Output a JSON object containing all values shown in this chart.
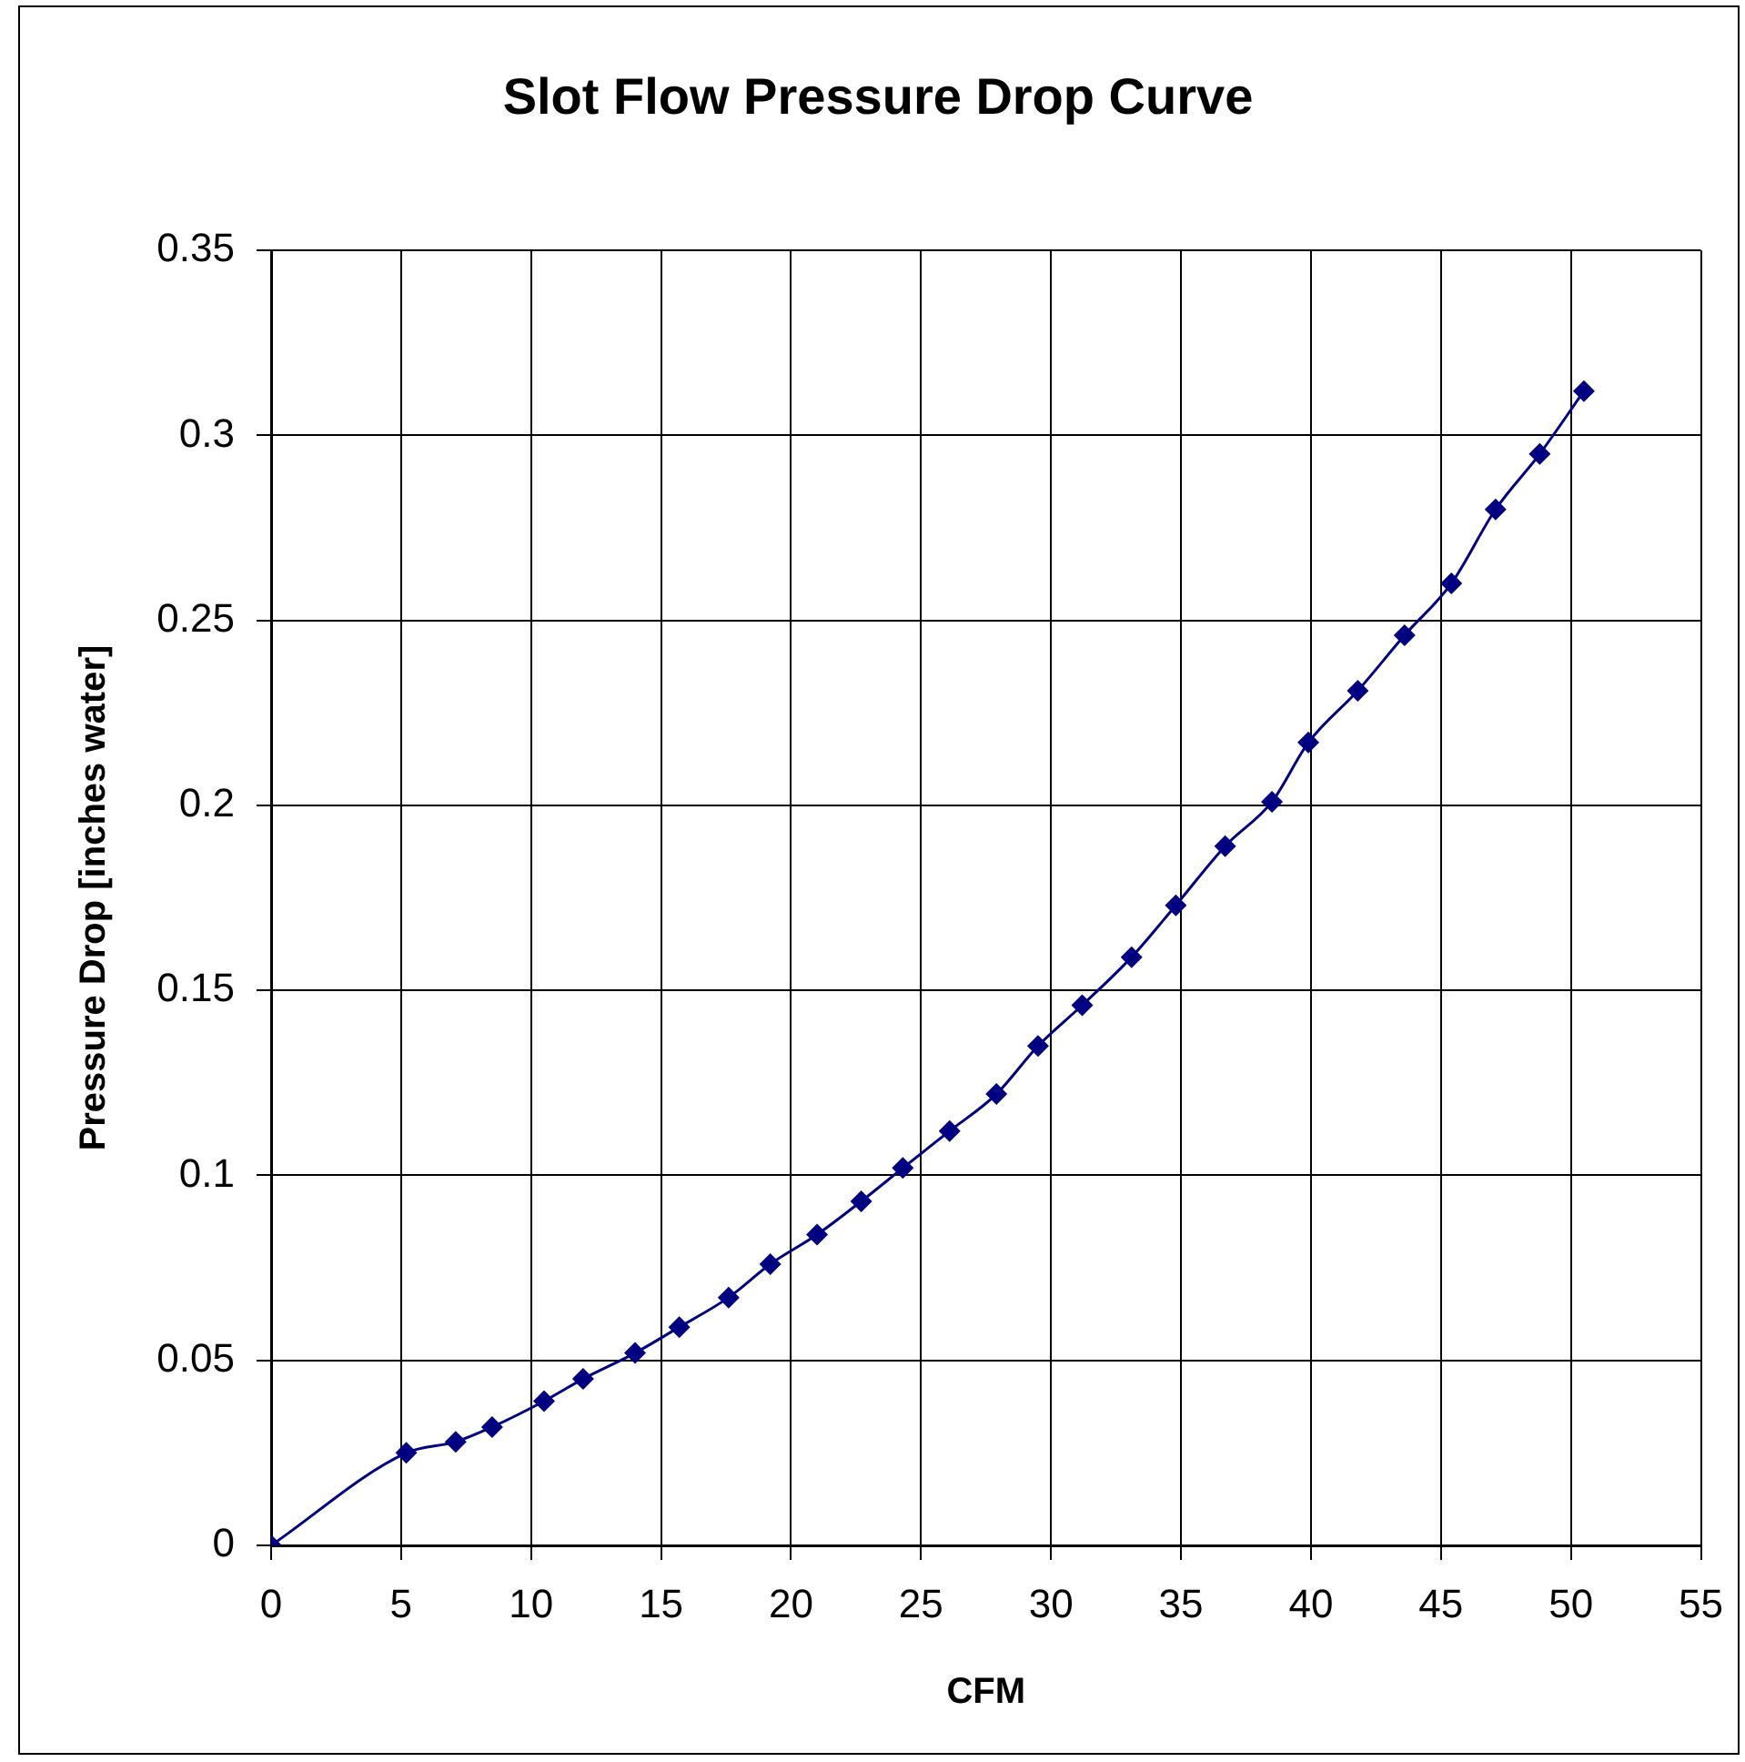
{
  "chart_data": {
    "type": "line",
    "title": "Slot Flow Pressure Drop Curve",
    "xlabel": "CFM",
    "ylabel": "Pressure Drop [inches water]",
    "x": [
      0,
      5.2,
      7.1,
      8.5,
      10.5,
      12.0,
      14.0,
      15.7,
      17.6,
      19.2,
      21.0,
      22.7,
      24.3,
      26.1,
      27.9,
      29.5,
      31.2,
      33.1,
      34.8,
      36.7,
      38.5,
      39.9,
      41.8,
      43.6,
      45.4,
      47.1,
      48.8,
      50.5
    ],
    "series": [
      {
        "color": "#000080",
        "values": [
          0,
          0.025,
          0.028,
          0.032,
          0.039,
          0.045,
          0.052,
          0.059,
          0.067,
          0.076,
          0.084,
          0.093,
          0.102,
          0.112,
          0.122,
          0.135,
          0.146,
          0.159,
          0.173,
          0.189,
          0.201,
          0.217,
          0.231,
          0.246,
          0.26,
          0.28,
          0.295,
          0.312
        ]
      }
    ],
    "xlim": [
      0,
      55
    ],
    "xticks": [
      0,
      5,
      10,
      15,
      20,
      25,
      30,
      35,
      40,
      45,
      50,
      55
    ],
    "ylim": [
      0,
      0.35
    ],
    "yticks": [
      0,
      0.05,
      0.1,
      0.15,
      0.2,
      0.25,
      0.3,
      0.35
    ],
    "grid": true,
    "marker": "diamond",
    "line_style": "solid"
  }
}
